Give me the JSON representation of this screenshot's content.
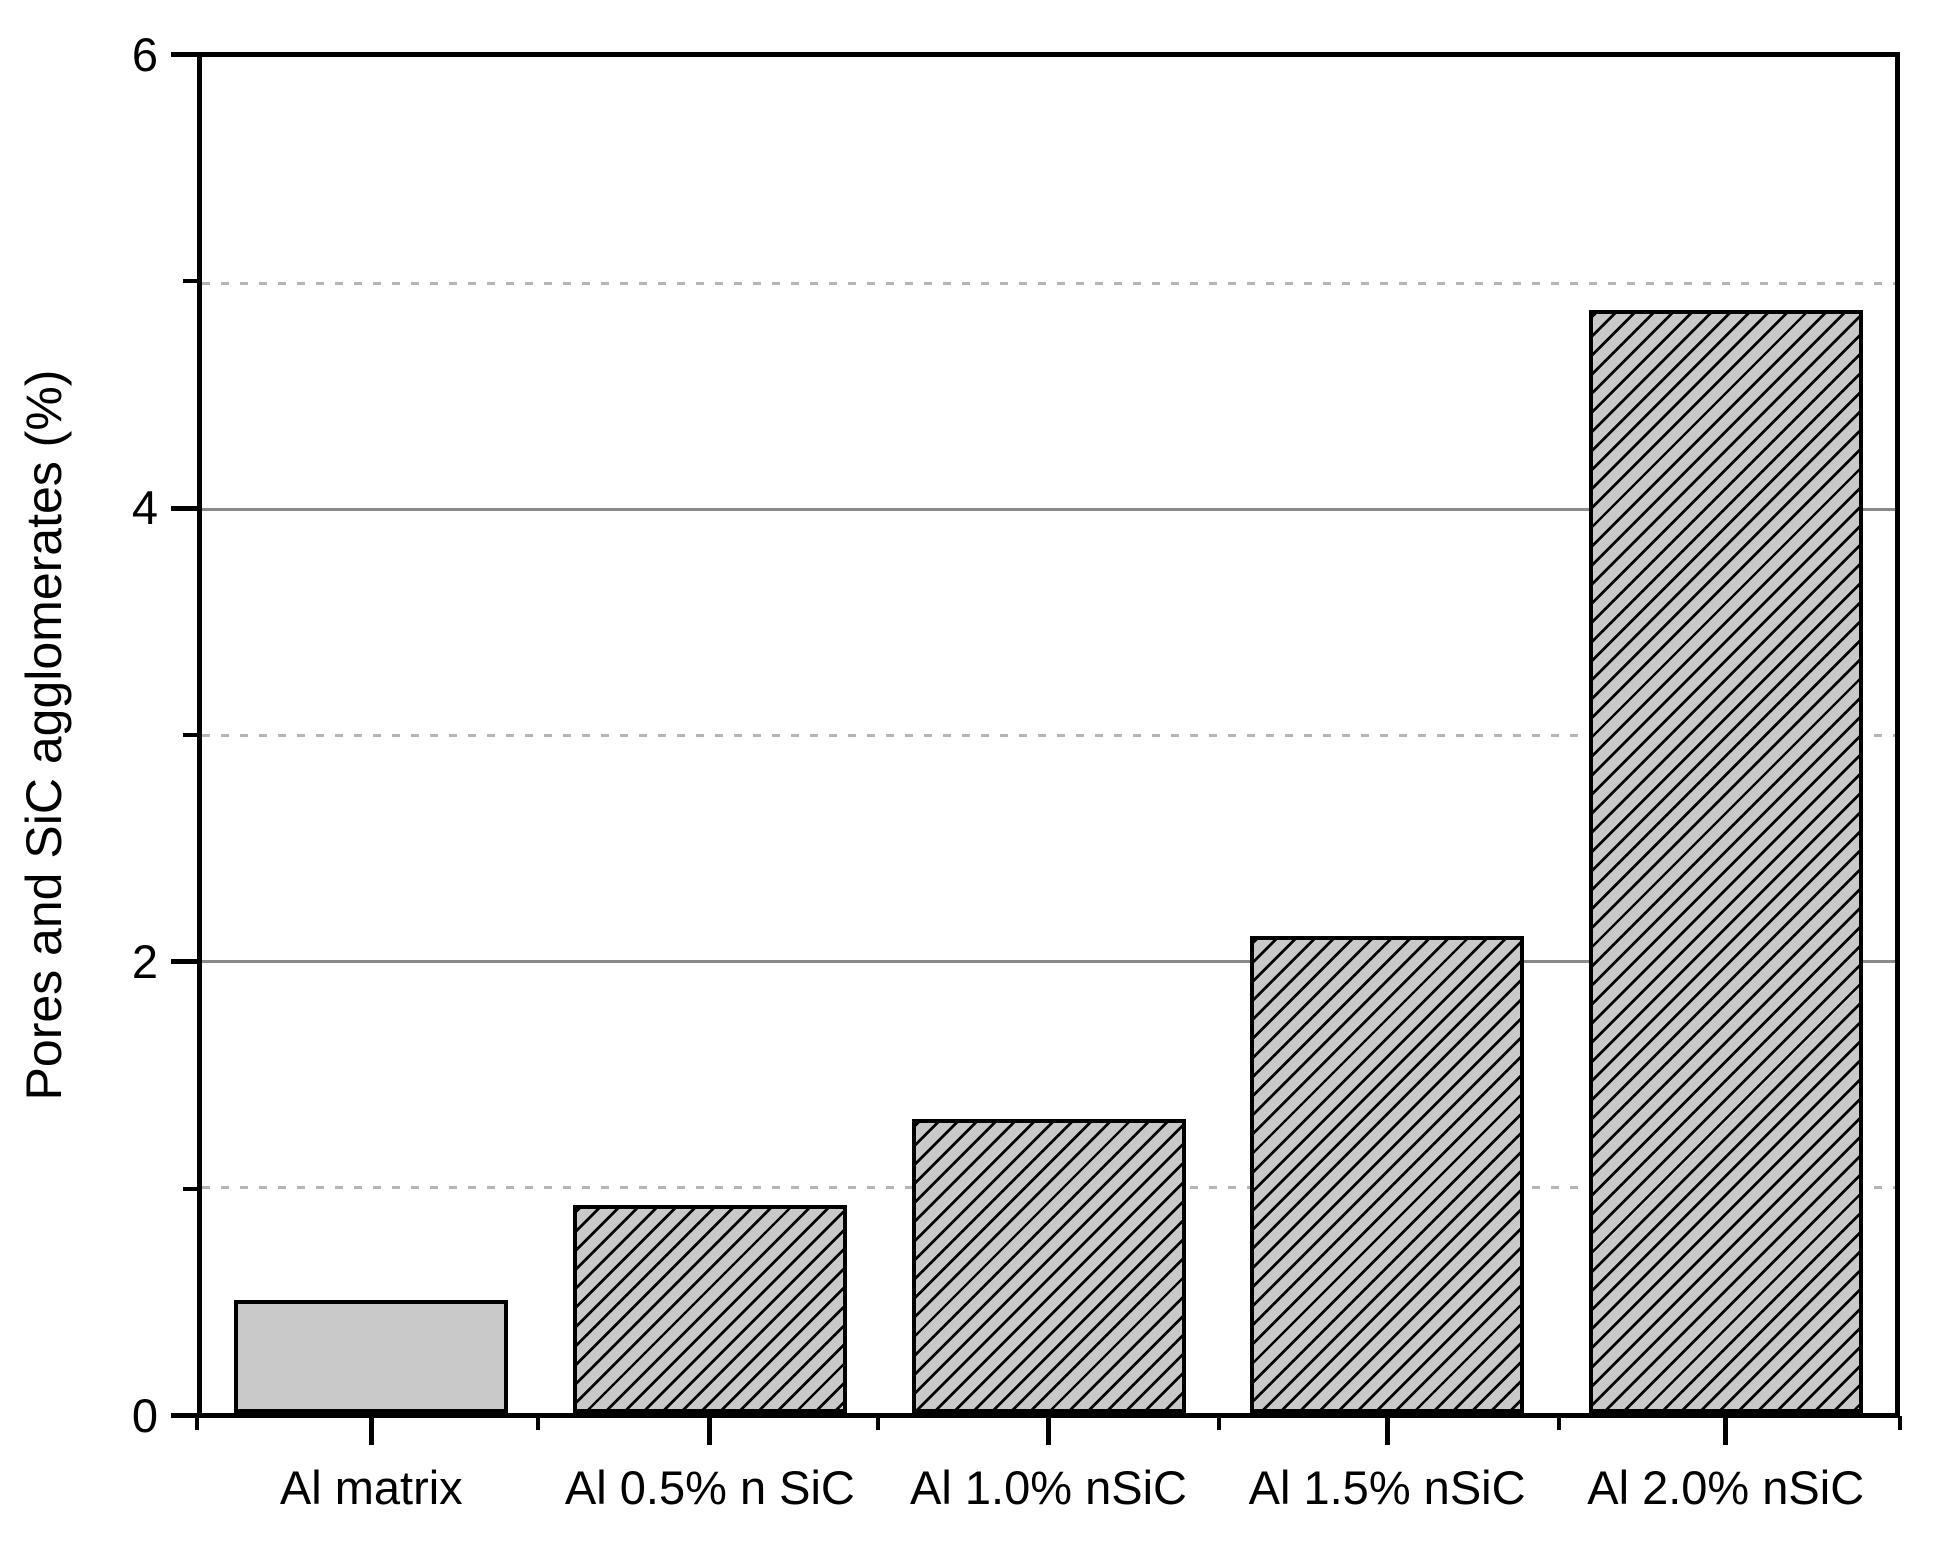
{
  "chart_data": {
    "type": "bar",
    "title": "",
    "xlabel": "",
    "ylabel": "Pores and SiC agglomerates (%)",
    "categories": [
      "Al matrix",
      "Al 0.5% n SiC",
      "Al 1.0% nSiC",
      "Al 1.5% nSiC",
      "Al 2.0% nSiC"
    ],
    "values": [
      0.5,
      0.92,
      1.3,
      2.11,
      4.88
    ],
    "ylim": [
      0,
      6
    ],
    "yticks_major": [
      0,
      2,
      4,
      6
    ],
    "yticks_major_labels": [
      "0",
      "2",
      "4",
      "6"
    ],
    "yticks_minor": [
      1,
      3,
      5
    ],
    "grid": {
      "solid_major_at": [
        2,
        4
      ],
      "dashed_minor_at": [
        1,
        3,
        5
      ]
    },
    "legend": "none",
    "bar_hatched": [
      false,
      true,
      true,
      true,
      true
    ],
    "hatch_style": "forward-diagonal",
    "colors": {
      "bar_fill": "#c9c9c9",
      "bar_border": "#000000",
      "hatch_line": "#000000",
      "grid_solid": "#8a8a8a",
      "grid_dashed": "#b5b5b5",
      "axis": "#000000",
      "text": "#000000",
      "background": "#ffffff"
    }
  }
}
